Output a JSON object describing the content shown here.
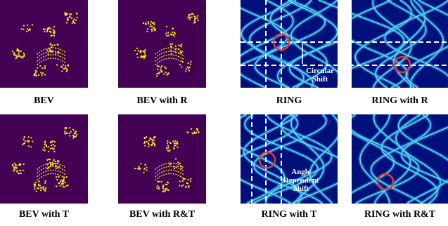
{
  "figure": {
    "panels": [
      {
        "caption": "BEV"
      },
      {
        "caption": "BEV with R"
      },
      {
        "caption": "RING"
      },
      {
        "caption": "RING with R"
      },
      {
        "caption": "BEV with T"
      },
      {
        "caption": "BEV with R&T"
      },
      {
        "caption": "RING with T"
      },
      {
        "caption": "RING with R&T"
      }
    ],
    "annotations": [
      {
        "lines": [
          "Circular",
          "Shift"
        ]
      },
      {
        "lines": [
          "Angle",
          "Dependent",
          "Shift"
        ]
      }
    ]
  }
}
